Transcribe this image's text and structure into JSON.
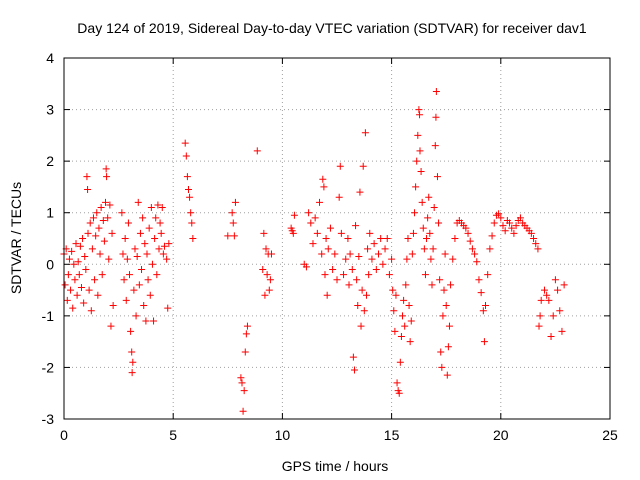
{
  "chart_data": {
    "type": "scatter",
    "title": "Day 124 of 2019, Sidereal Day-to-day VTEC variation (SDTVAR) for receiver dav1",
    "xlabel": "GPS time / hours",
    "ylabel": "SDTVAR / TECUs",
    "xlim": [
      0,
      25
    ],
    "ylim": [
      -3,
      4
    ],
    "xticks": [
      0,
      5,
      10,
      15,
      20,
      25
    ],
    "yticks": [
      -3,
      -2,
      -1,
      0,
      1,
      2,
      3,
      4
    ],
    "xtick_labels": [
      "0",
      "5",
      "10",
      "15",
      "20",
      "25"
    ],
    "ytick_labels": [
      "-3",
      "-2",
      "-1",
      "0",
      "1",
      "2",
      "3",
      "4"
    ],
    "grid": true,
    "marker": "+",
    "color": "#ff0000",
    "series": [
      {
        "name": "dav1",
        "points": [
          [
            0.0,
            0.2
          ],
          [
            0.05,
            -0.4
          ],
          [
            0.1,
            0.3
          ],
          [
            0.15,
            -0.7
          ],
          [
            0.2,
            -0.2
          ],
          [
            0.25,
            0.1
          ],
          [
            0.3,
            -0.5
          ],
          [
            0.35,
            0.25
          ],
          [
            0.4,
            -0.85
          ],
          [
            0.45,
            0.0
          ],
          [
            0.5,
            -0.3
          ],
          [
            0.55,
            0.4
          ],
          [
            0.6,
            -0.6
          ],
          [
            0.65,
            0.05
          ],
          [
            0.7,
            -0.2
          ],
          [
            0.75,
            0.35
          ],
          [
            0.8,
            -0.45
          ],
          [
            0.85,
            0.5
          ],
          [
            0.9,
            -0.75
          ],
          [
            0.95,
            0.15
          ],
          [
            1.0,
            -0.1
          ],
          [
            1.05,
            1.7
          ],
          [
            1.08,
            1.45
          ],
          [
            1.1,
            0.6
          ],
          [
            1.15,
            -0.5
          ],
          [
            1.2,
            0.8
          ],
          [
            1.25,
            -0.9
          ],
          [
            1.3,
            0.3
          ],
          [
            1.35,
            0.9
          ],
          [
            1.4,
            -0.3
          ],
          [
            1.45,
            0.55
          ],
          [
            1.5,
            1.0
          ],
          [
            1.55,
            -0.6
          ],
          [
            1.6,
            0.7
          ],
          [
            1.65,
            0.2
          ],
          [
            1.7,
            1.1
          ],
          [
            1.75,
            -0.2
          ],
          [
            1.8,
            0.85
          ],
          [
            1.85,
            0.45
          ],
          [
            1.9,
            1.2
          ],
          [
            1.93,
            1.85
          ],
          [
            1.95,
            1.7
          ],
          [
            2.0,
            0.9
          ],
          [
            2.05,
            0.1
          ],
          [
            2.1,
            1.15
          ],
          [
            2.15,
            -1.2
          ],
          [
            2.2,
            0.6
          ],
          [
            2.25,
            -0.8
          ],
          [
            2.65,
            1.0
          ],
          [
            2.7,
            0.2
          ],
          [
            2.75,
            -0.3
          ],
          [
            2.8,
            0.5
          ],
          [
            2.85,
            -0.7
          ],
          [
            2.9,
            0.1
          ],
          [
            2.95,
            0.8
          ],
          [
            3.0,
            -0.2
          ],
          [
            3.05,
            -1.3
          ],
          [
            3.1,
            -1.7
          ],
          [
            3.12,
            -2.1
          ],
          [
            3.15,
            -1.9
          ],
          [
            3.2,
            -0.5
          ],
          [
            3.25,
            0.3
          ],
          [
            3.3,
            -1.0
          ],
          [
            3.35,
            0.15
          ],
          [
            3.4,
            1.2
          ],
          [
            3.45,
            -0.4
          ],
          [
            3.5,
            0.6
          ],
          [
            3.55,
            -0.1
          ],
          [
            3.6,
            0.9
          ],
          [
            3.65,
            -0.8
          ],
          [
            3.7,
            0.4
          ],
          [
            3.75,
            -1.1
          ],
          [
            3.8,
            0.2
          ],
          [
            3.85,
            -0.3
          ],
          [
            3.9,
            0.7
          ],
          [
            3.95,
            -0.6
          ],
          [
            4.0,
            1.1
          ],
          [
            4.05,
            0.0
          ],
          [
            4.1,
            -1.1
          ],
          [
            4.15,
            0.5
          ],
          [
            4.2,
            0.9
          ],
          [
            4.25,
            -0.2
          ],
          [
            4.3,
            1.15
          ],
          [
            4.35,
            0.3
          ],
          [
            4.4,
            0.8
          ],
          [
            4.45,
            0.6
          ],
          [
            4.5,
            1.1
          ],
          [
            4.55,
            0.2
          ],
          [
            4.6,
            0.35
          ],
          [
            4.7,
            0.1
          ],
          [
            4.75,
            -0.85
          ],
          [
            4.8,
            0.4
          ],
          [
            5.55,
            2.35
          ],
          [
            5.6,
            2.1
          ],
          [
            5.65,
            1.7
          ],
          [
            5.7,
            1.45
          ],
          [
            5.75,
            1.3
          ],
          [
            5.8,
            1.0
          ],
          [
            5.85,
            0.8
          ],
          [
            5.9,
            0.5
          ],
          [
            7.5,
            0.55
          ],
          [
            7.7,
            1.0
          ],
          [
            7.75,
            0.8
          ],
          [
            7.8,
            0.55
          ],
          [
            7.85,
            1.2
          ],
          [
            8.1,
            -2.2
          ],
          [
            8.15,
            -2.3
          ],
          [
            8.2,
            -2.85
          ],
          [
            8.25,
            -2.45
          ],
          [
            8.3,
            -1.7
          ],
          [
            8.35,
            -1.35
          ],
          [
            8.4,
            -1.2
          ],
          [
            8.85,
            2.2
          ],
          [
            9.1,
            -0.1
          ],
          [
            9.15,
            0.6
          ],
          [
            9.2,
            -0.6
          ],
          [
            9.25,
            0.3
          ],
          [
            9.3,
            -0.2
          ],
          [
            9.35,
            0.2
          ],
          [
            9.4,
            -0.5
          ],
          [
            9.45,
            -0.3
          ],
          [
            9.5,
            0.2
          ],
          [
            10.4,
            0.7
          ],
          [
            10.45,
            0.65
          ],
          [
            10.5,
            0.6
          ],
          [
            10.55,
            0.95
          ],
          [
            11.0,
            0.0
          ],
          [
            11.1,
            -0.05
          ],
          [
            11.2,
            1.0
          ],
          [
            11.3,
            0.8
          ],
          [
            11.4,
            0.4
          ],
          [
            11.5,
            0.9
          ],
          [
            11.6,
            0.6
          ],
          [
            11.7,
            1.2
          ],
          [
            11.8,
            0.2
          ],
          [
            11.85,
            1.65
          ],
          [
            11.9,
            1.5
          ],
          [
            11.95,
            -0.2
          ],
          [
            12.0,
            0.5
          ],
          [
            12.05,
            -0.6
          ],
          [
            12.1,
            0.3
          ],
          [
            12.2,
            0.7
          ],
          [
            12.3,
            -0.1
          ],
          [
            12.4,
            0.2
          ],
          [
            12.5,
            -0.3
          ],
          [
            12.6,
            1.3
          ],
          [
            12.65,
            1.9
          ],
          [
            12.7,
            0.6
          ],
          [
            12.8,
            -0.2
          ],
          [
            12.9,
            0.1
          ],
          [
            13.0,
            0.5
          ],
          [
            13.05,
            -0.4
          ],
          [
            13.1,
            0.2
          ],
          [
            13.2,
            -0.1
          ],
          [
            13.25,
            -1.8
          ],
          [
            13.3,
            -2.05
          ],
          [
            13.35,
            0.75
          ],
          [
            13.4,
            -0.3
          ],
          [
            13.45,
            -0.8
          ],
          [
            13.5,
            0.15
          ],
          [
            13.55,
            1.4
          ],
          [
            13.6,
            -1.2
          ],
          [
            13.65,
            -0.5
          ],
          [
            13.7,
            1.9
          ],
          [
            13.75,
            -0.9
          ],
          [
            13.8,
            2.55
          ],
          [
            13.85,
            -0.6
          ],
          [
            13.9,
            0.3
          ],
          [
            13.95,
            -0.2
          ],
          [
            14.0,
            0.6
          ],
          [
            14.1,
            0.1
          ],
          [
            14.2,
            0.4
          ],
          [
            14.3,
            -0.1
          ],
          [
            14.4,
            0.2
          ],
          [
            14.5,
            0.5
          ],
          [
            14.6,
            0.0
          ],
          [
            14.7,
            0.3
          ],
          [
            14.8,
            0.5
          ],
          [
            14.9,
            -0.2
          ],
          [
            15.0,
            0.1
          ],
          [
            15.05,
            -0.5
          ],
          [
            15.1,
            -0.9
          ],
          [
            15.15,
            -1.3
          ],
          [
            15.2,
            -0.6
          ],
          [
            15.25,
            -2.3
          ],
          [
            15.3,
            -2.45
          ],
          [
            15.35,
            -2.5
          ],
          [
            15.4,
            -1.9
          ],
          [
            15.45,
            -1.4
          ],
          [
            15.5,
            -1.0
          ],
          [
            15.55,
            -0.7
          ],
          [
            15.6,
            -1.2
          ],
          [
            15.65,
            -0.4
          ],
          [
            15.7,
            0.1
          ],
          [
            15.75,
            0.5
          ],
          [
            15.8,
            -0.8
          ],
          [
            15.85,
            -1.5
          ],
          [
            15.9,
            -1.1
          ],
          [
            15.95,
            0.2
          ],
          [
            16.0,
            0.6
          ],
          [
            16.05,
            1.0
          ],
          [
            16.1,
            1.5
          ],
          [
            16.15,
            2.0
          ],
          [
            16.2,
            2.5
          ],
          [
            16.25,
            3.0
          ],
          [
            16.28,
            2.9
          ],
          [
            16.3,
            2.2
          ],
          [
            16.35,
            1.8
          ],
          [
            16.4,
            1.2
          ],
          [
            16.45,
            0.7
          ],
          [
            16.5,
            0.3
          ],
          [
            16.55,
            -0.2
          ],
          [
            16.6,
            0.5
          ],
          [
            16.65,
            0.9
          ],
          [
            16.7,
            1.3
          ],
          [
            16.75,
            0.6
          ],
          [
            16.8,
            0.1
          ],
          [
            16.85,
            -0.4
          ],
          [
            16.9,
            0.3
          ],
          [
            16.95,
            1.1
          ],
          [
            17.0,
            2.3
          ],
          [
            17.03,
            2.85
          ],
          [
            17.05,
            3.35
          ],
          [
            17.1,
            1.7
          ],
          [
            17.15,
            0.8
          ],
          [
            17.2,
            -0.3
          ],
          [
            17.25,
            -1.7
          ],
          [
            17.3,
            -2.0
          ],
          [
            17.35,
            -1.0
          ],
          [
            17.4,
            -0.5
          ],
          [
            17.45,
            0.2
          ],
          [
            17.5,
            -0.8
          ],
          [
            17.55,
            -2.15
          ],
          [
            17.6,
            -1.6
          ],
          [
            17.65,
            -1.2
          ],
          [
            17.7,
            -0.4
          ],
          [
            17.8,
            0.1
          ],
          [
            17.9,
            0.5
          ],
          [
            18.0,
            0.8
          ],
          [
            18.1,
            0.85
          ],
          [
            18.2,
            0.8
          ],
          [
            18.3,
            0.75
          ],
          [
            18.4,
            0.7
          ],
          [
            18.5,
            0.6
          ],
          [
            18.6,
            0.45
          ],
          [
            18.7,
            0.3
          ],
          [
            18.8,
            0.2
          ],
          [
            18.9,
            0.05
          ],
          [
            19.0,
            -0.3
          ],
          [
            19.1,
            -0.55
          ],
          [
            19.2,
            -0.9
          ],
          [
            19.25,
            -1.5
          ],
          [
            19.3,
            -0.8
          ],
          [
            19.4,
            -0.2
          ],
          [
            19.5,
            0.3
          ],
          [
            19.6,
            0.55
          ],
          [
            19.7,
            0.8
          ],
          [
            19.8,
            0.95
          ],
          [
            19.9,
            0.98
          ],
          [
            20.0,
            0.9
          ],
          [
            20.1,
            0.75
          ],
          [
            20.2,
            0.65
          ],
          [
            20.3,
            0.85
          ],
          [
            20.4,
            0.8
          ],
          [
            20.5,
            0.7
          ],
          [
            20.6,
            0.6
          ],
          [
            20.7,
            0.75
          ],
          [
            20.8,
            0.85
          ],
          [
            20.9,
            0.9
          ],
          [
            21.0,
            0.8
          ],
          [
            21.1,
            0.75
          ],
          [
            21.2,
            0.7
          ],
          [
            21.3,
            0.65
          ],
          [
            21.4,
            0.6
          ],
          [
            21.5,
            0.5
          ],
          [
            21.6,
            0.4
          ],
          [
            21.7,
            0.3
          ],
          [
            21.75,
            -1.2
          ],
          [
            21.8,
            -1.0
          ],
          [
            21.85,
            -0.7
          ],
          [
            22.0,
            -0.5
          ],
          [
            22.1,
            -0.6
          ],
          [
            22.2,
            -0.7
          ],
          [
            22.3,
            -1.4
          ],
          [
            22.4,
            -1.0
          ],
          [
            22.5,
            -0.3
          ],
          [
            22.6,
            -0.5
          ],
          [
            22.7,
            -0.9
          ],
          [
            22.8,
            -1.3
          ],
          [
            22.9,
            -0.4
          ]
        ]
      }
    ]
  }
}
